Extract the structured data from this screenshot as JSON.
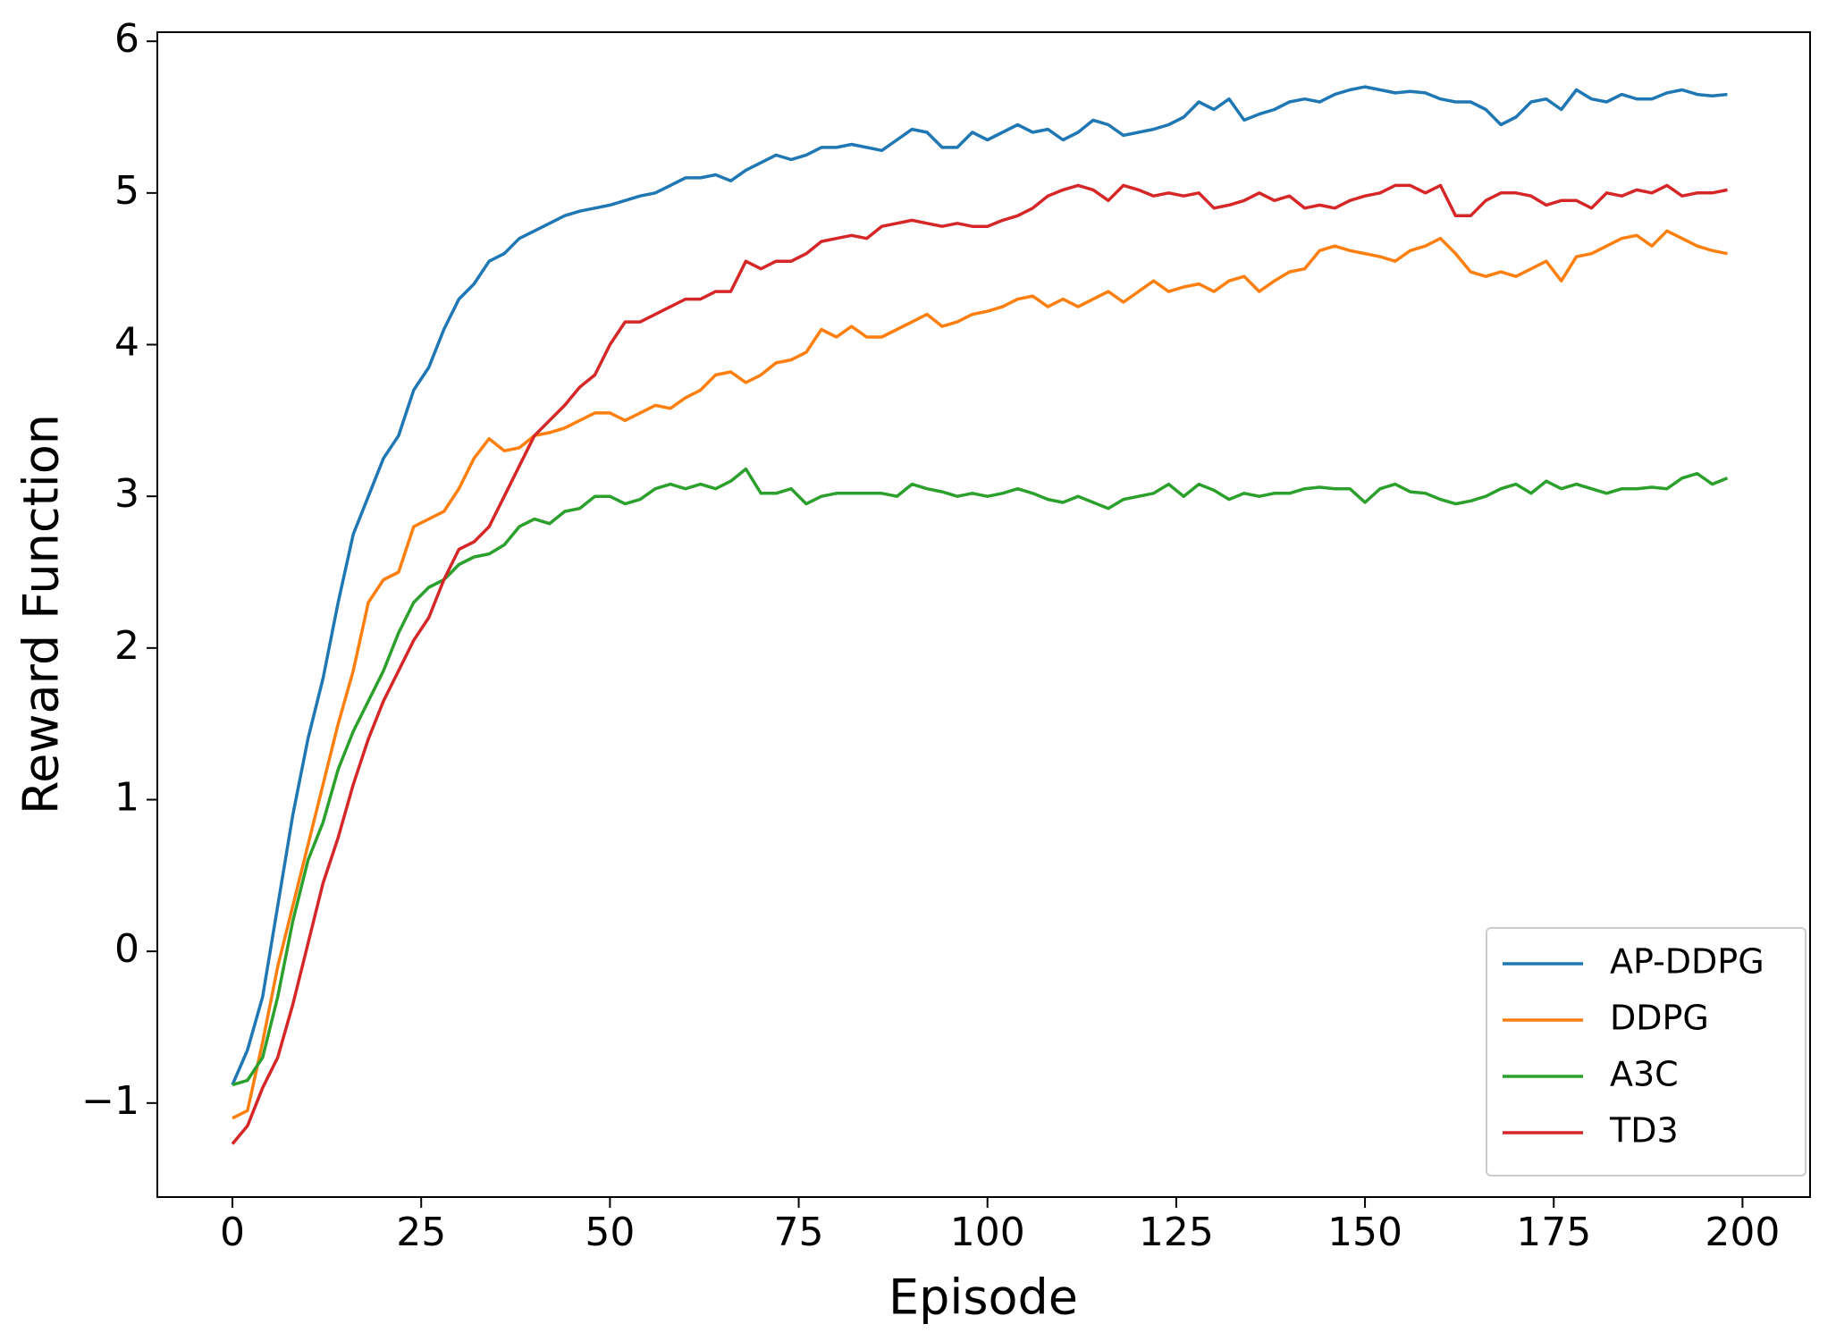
{
  "chart_data": {
    "type": "line",
    "x_label": "Episode",
    "y_label": "Reward Function",
    "x": [
      0,
      2,
      4,
      6,
      8,
      10,
      12,
      14,
      16,
      18,
      20,
      22,
      24,
      26,
      28,
      30,
      32,
      34,
      36,
      38,
      40,
      42,
      44,
      46,
      48,
      50,
      52,
      54,
      56,
      58,
      60,
      62,
      64,
      66,
      68,
      70,
      72,
      74,
      76,
      78,
      80,
      82,
      84,
      86,
      88,
      90,
      92,
      94,
      96,
      98,
      100,
      102,
      104,
      106,
      108,
      110,
      112,
      114,
      116,
      118,
      120,
      122,
      124,
      126,
      128,
      130,
      132,
      134,
      136,
      138,
      140,
      142,
      144,
      146,
      148,
      150,
      152,
      154,
      156,
      158,
      160,
      162,
      164,
      166,
      168,
      170,
      172,
      174,
      176,
      178,
      180,
      182,
      184,
      186,
      188,
      190,
      192,
      194,
      196,
      198
    ],
    "series": [
      {
        "name": "AP-DDPG",
        "color": "#1f77b4",
        "values": [
          -0.88,
          -0.65,
          -0.3,
          0.3,
          0.9,
          1.4,
          1.8,
          2.3,
          2.75,
          3.0,
          3.25,
          3.4,
          3.7,
          3.85,
          4.1,
          4.3,
          4.4,
          4.55,
          4.6,
          4.7,
          4.75,
          4.8,
          4.85,
          4.88,
          4.9,
          4.92,
          4.95,
          4.98,
          5.0,
          5.05,
          5.1,
          5.1,
          5.12,
          5.08,
          5.15,
          5.2,
          5.25,
          5.22,
          5.25,
          5.3,
          5.3,
          5.32,
          5.3,
          5.28,
          5.35,
          5.42,
          5.4,
          5.3,
          5.3,
          5.4,
          5.35,
          5.4,
          5.45,
          5.4,
          5.42,
          5.35,
          5.4,
          5.48,
          5.45,
          5.38,
          5.4,
          5.42,
          5.45,
          5.5,
          5.6,
          5.55,
          5.62,
          5.48,
          5.52,
          5.55,
          5.6,
          5.62,
          5.6,
          5.65,
          5.68,
          5.7,
          5.68,
          5.66,
          5.67,
          5.66,
          5.62,
          5.6,
          5.6,
          5.55,
          5.45,
          5.5,
          5.6,
          5.62,
          5.55,
          5.68,
          5.62,
          5.6,
          5.65,
          5.62,
          5.62,
          5.66,
          5.68,
          5.65,
          5.64,
          5.65
        ]
      },
      {
        "name": "DDPG",
        "color": "#ff7f0e",
        "values": [
          -1.1,
          -1.05,
          -0.6,
          -0.1,
          0.3,
          0.7,
          1.1,
          1.5,
          1.85,
          2.3,
          2.45,
          2.5,
          2.8,
          2.85,
          2.9,
          3.05,
          3.25,
          3.38,
          3.3,
          3.32,
          3.4,
          3.42,
          3.45,
          3.5,
          3.55,
          3.55,
          3.5,
          3.55,
          3.6,
          3.58,
          3.65,
          3.7,
          3.8,
          3.82,
          3.75,
          3.8,
          3.88,
          3.9,
          3.95,
          4.1,
          4.05,
          4.12,
          4.05,
          4.05,
          4.1,
          4.15,
          4.2,
          4.12,
          4.15,
          4.2,
          4.22,
          4.25,
          4.3,
          4.32,
          4.25,
          4.3,
          4.25,
          4.3,
          4.35,
          4.28,
          4.35,
          4.42,
          4.35,
          4.38,
          4.4,
          4.35,
          4.42,
          4.45,
          4.35,
          4.42,
          4.48,
          4.5,
          4.62,
          4.65,
          4.62,
          4.6,
          4.58,
          4.55,
          4.62,
          4.65,
          4.7,
          4.6,
          4.48,
          4.45,
          4.48,
          4.45,
          4.5,
          4.55,
          4.42,
          4.58,
          4.6,
          4.65,
          4.7,
          4.72,
          4.65,
          4.75,
          4.7,
          4.65,
          4.62,
          4.6
        ]
      },
      {
        "name": "A3C",
        "color": "#2ca02c",
        "values": [
          -0.88,
          -0.85,
          -0.7,
          -0.3,
          0.2,
          0.6,
          0.85,
          1.2,
          1.45,
          1.65,
          1.85,
          2.1,
          2.3,
          2.4,
          2.45,
          2.55,
          2.6,
          2.62,
          2.68,
          2.8,
          2.85,
          2.82,
          2.9,
          2.92,
          3.0,
          3.0,
          2.95,
          2.98,
          3.05,
          3.08,
          3.05,
          3.08,
          3.05,
          3.1,
          3.18,
          3.02,
          3.02,
          3.05,
          2.95,
          3.0,
          3.02,
          3.02,
          3.02,
          3.02,
          3.0,
          3.08,
          3.05,
          3.03,
          3.0,
          3.02,
          3.0,
          3.02,
          3.05,
          3.02,
          2.98,
          2.96,
          3.0,
          2.96,
          2.92,
          2.98,
          3.0,
          3.02,
          3.08,
          3.0,
          3.08,
          3.04,
          2.98,
          3.02,
          3.0,
          3.02,
          3.02,
          3.05,
          3.06,
          3.05,
          3.05,
          2.96,
          3.05,
          3.08,
          3.03,
          3.02,
          2.98,
          2.95,
          2.97,
          3.0,
          3.05,
          3.08,
          3.02,
          3.1,
          3.05,
          3.08,
          3.05,
          3.02,
          3.05,
          3.05,
          3.06,
          3.05,
          3.12,
          3.15,
          3.08,
          3.12
        ]
      },
      {
        "name": "TD3",
        "color": "#d62728",
        "values": [
          -1.27,
          -1.15,
          -0.9,
          -0.7,
          -0.35,
          0.05,
          0.45,
          0.75,
          1.1,
          1.4,
          1.65,
          1.85,
          2.05,
          2.2,
          2.45,
          2.65,
          2.7,
          2.8,
          3.0,
          3.2,
          3.4,
          3.5,
          3.6,
          3.72,
          3.8,
          4.0,
          4.15,
          4.15,
          4.2,
          4.25,
          4.3,
          4.3,
          4.35,
          4.35,
          4.55,
          4.5,
          4.55,
          4.55,
          4.6,
          4.68,
          4.7,
          4.72,
          4.7,
          4.78,
          4.8,
          4.82,
          4.8,
          4.78,
          4.8,
          4.78,
          4.78,
          4.82,
          4.85,
          4.9,
          4.98,
          5.02,
          5.05,
          5.02,
          4.95,
          5.05,
          5.02,
          4.98,
          5.0,
          4.98,
          5.0,
          4.9,
          4.92,
          4.95,
          5.0,
          4.95,
          4.98,
          4.9,
          4.92,
          4.9,
          4.95,
          4.98,
          5.0,
          5.05,
          5.05,
          5.0,
          5.05,
          4.85,
          4.85,
          4.95,
          5.0,
          5.0,
          4.98,
          4.92,
          4.95,
          4.95,
          4.9,
          5.0,
          4.98,
          5.02,
          5.0,
          5.05,
          4.98,
          5.0,
          5.0,
          5.02
        ]
      }
    ],
    "xlim": [
      -9.95,
      208.95
    ],
    "ylim": [
      -1.62,
      6.06
    ],
    "xticks": [
      0,
      25,
      50,
      75,
      100,
      125,
      150,
      175,
      200
    ],
    "yticks": [
      {
        "value": -1,
        "label": "−1"
      },
      0,
      1,
      2,
      3,
      4,
      5,
      6
    ],
    "legend": "lower right"
  }
}
